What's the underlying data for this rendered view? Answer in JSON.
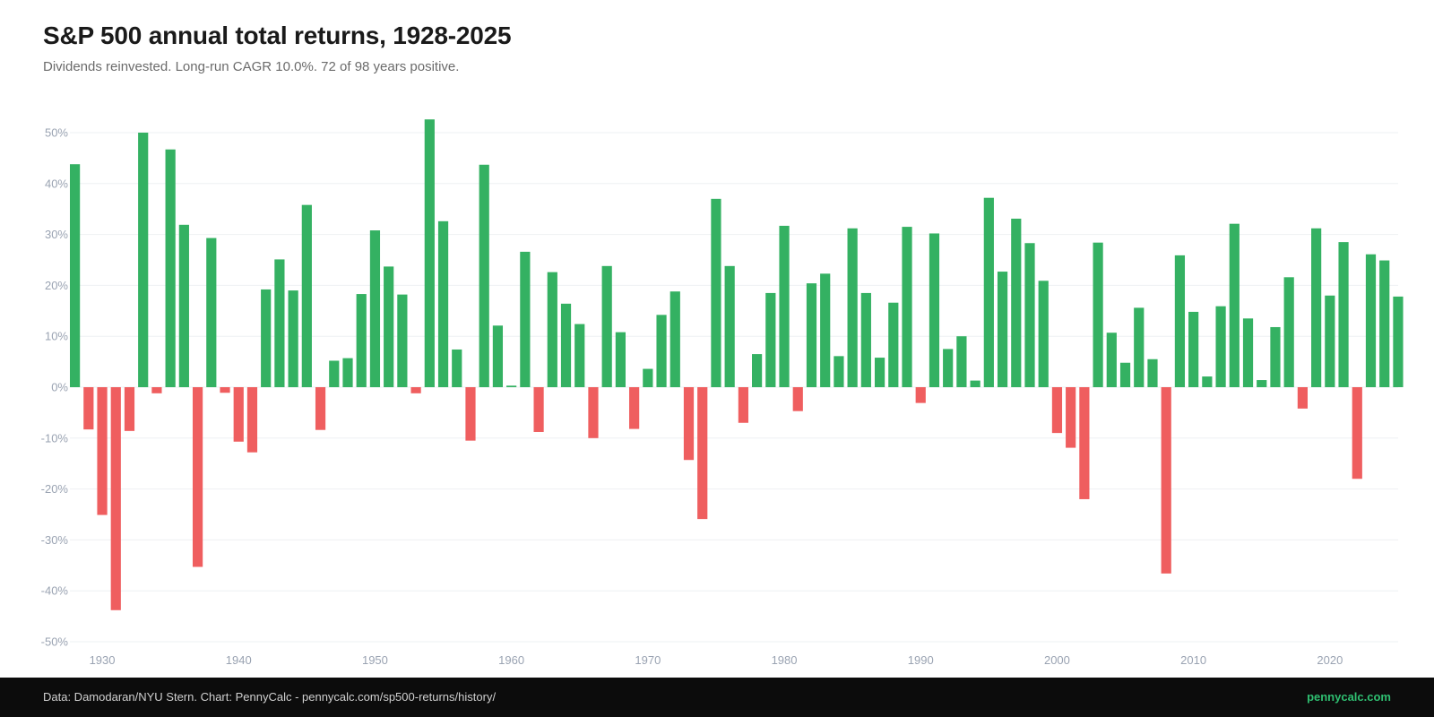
{
  "header": {
    "title": "S&P 500 annual total returns, 1928-2025",
    "subtitle": "Dividends reinvested. Long-run CAGR 10.0%. 72 of 98 years positive."
  },
  "footer": {
    "source": "Data: Damodaran/NYU Stern. Chart: PennyCalc - pennycalc.com/sp500-returns/history/",
    "brand": "pennycalc.com"
  },
  "colors": {
    "positive": "#34b162",
    "negative": "#ef5e5f",
    "grid": "#eef0f3",
    "tick": "#9aa3b2",
    "brand": "#2fbf71"
  },
  "chart_data": {
    "type": "bar",
    "title": "S&P 500 annual total returns, 1928-2025",
    "ylim": [
      -50,
      50
    ],
    "yticks": [
      50,
      40,
      30,
      20,
      10,
      0,
      -10,
      -20,
      -30,
      -40,
      -50
    ],
    "ytick_labels": [
      "50%",
      "40%",
      "30%",
      "20%",
      "10%",
      "0%",
      "-10%",
      "-20%",
      "-30%",
      "-40%",
      "-50%"
    ],
    "xticks": [
      1930,
      1940,
      1950,
      1960,
      1970,
      1980,
      1990,
      2000,
      2010,
      2020
    ],
    "xtick_labels": [
      "1930",
      "1940",
      "1950",
      "1960",
      "1970",
      "1980",
      "1990",
      "2000",
      "2010",
      "2020"
    ],
    "grid": "horizontal",
    "legend": "none",
    "x_start": 1928,
    "x": [
      1928,
      1929,
      1930,
      1931,
      1932,
      1933,
      1934,
      1935,
      1936,
      1937,
      1938,
      1939,
      1940,
      1941,
      1942,
      1943,
      1944,
      1945,
      1946,
      1947,
      1948,
      1949,
      1950,
      1951,
      1952,
      1953,
      1954,
      1955,
      1956,
      1957,
      1958,
      1959,
      1960,
      1961,
      1962,
      1963,
      1964,
      1965,
      1966,
      1967,
      1968,
      1969,
      1970,
      1971,
      1972,
      1973,
      1974,
      1975,
      1976,
      1977,
      1978,
      1979,
      1980,
      1981,
      1982,
      1983,
      1984,
      1985,
      1986,
      1987,
      1988,
      1989,
      1990,
      1991,
      1992,
      1993,
      1994,
      1995,
      1996,
      1997,
      1998,
      1999,
      2000,
      2001,
      2002,
      2003,
      2004,
      2005,
      2006,
      2007,
      2008,
      2009,
      2010,
      2011,
      2012,
      2013,
      2014,
      2015,
      2016,
      2017,
      2018,
      2019,
      2020,
      2021,
      2022,
      2023,
      2024,
      2025
    ],
    "values": [
      43.8,
      -8.3,
      -25.1,
      -43.8,
      -8.6,
      50.0,
      -1.2,
      46.7,
      31.9,
      -35.3,
      29.3,
      -1.1,
      -10.7,
      -12.8,
      19.2,
      25.1,
      19.0,
      35.8,
      -8.4,
      5.2,
      5.7,
      18.3,
      30.8,
      23.7,
      18.2,
      -1.2,
      52.6,
      32.6,
      7.4,
      -10.5,
      43.7,
      12.1,
      0.3,
      26.6,
      -8.8,
      22.6,
      16.4,
      12.4,
      -10.0,
      23.8,
      10.8,
      -8.2,
      3.6,
      14.2,
      18.8,
      -14.3,
      -25.9,
      37.0,
      23.8,
      -7.0,
      6.5,
      18.5,
      31.7,
      -4.7,
      20.4,
      22.3,
      6.1,
      31.2,
      18.5,
      5.8,
      16.6,
      31.5,
      -3.1,
      30.2,
      7.5,
      10.0,
      1.3,
      37.2,
      22.7,
      33.1,
      28.3,
      20.9,
      -9.0,
      -11.9,
      -22.0,
      28.4,
      10.7,
      4.8,
      15.6,
      5.5,
      -36.6,
      25.9,
      14.8,
      2.1,
      15.9,
      32.1,
      13.5,
      1.4,
      11.8,
      21.6,
      -4.2,
      31.2,
      18.0,
      28.5,
      -18.0,
      26.1,
      24.9,
      17.8
    ]
  }
}
